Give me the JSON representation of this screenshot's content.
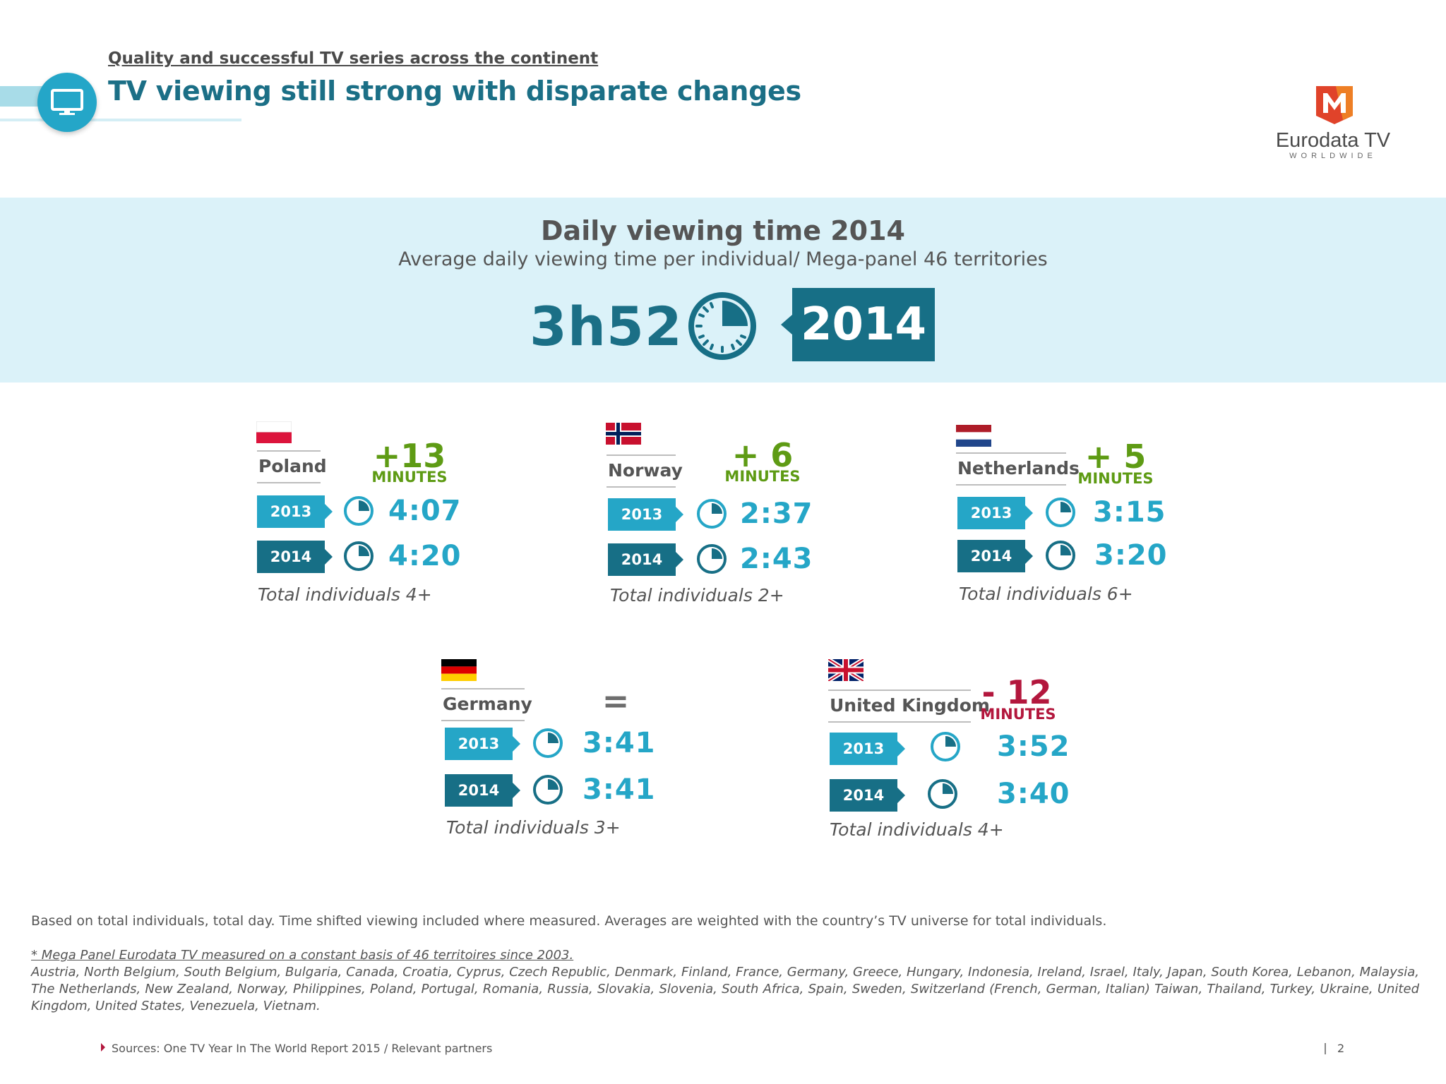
{
  "header": {
    "kicker": "Quality and successful TV series across the continent",
    "title": "TV viewing still strong with disparate changes",
    "icon": "tv-monitor-icon"
  },
  "logo": {
    "name": "Eurodata TV",
    "tagline": "WORLDWIDE",
    "mark_letter": "M",
    "colors": {
      "red": "#e0432a",
      "orange": "#f08a24"
    }
  },
  "banner": {
    "title": "Daily viewing time 2014",
    "subtitle": "Average daily viewing time per individual/ Mega-panel 46 territories",
    "time": "3h52",
    "year": "2014"
  },
  "countries": [
    {
      "name": "Poland",
      "flag": "poland",
      "change": "+13",
      "unit": "MINUTES",
      "trend": "up",
      "rows": [
        {
          "year": "2013",
          "time": "4:07"
        },
        {
          "year": "2014",
          "time": "4:20"
        }
      ],
      "base": "Total individuals 4+"
    },
    {
      "name": "Norway",
      "flag": "norway",
      "change": "+ 6",
      "unit": "MINUTES",
      "trend": "up",
      "rows": [
        {
          "year": "2013",
          "time": "2:37"
        },
        {
          "year": "2014",
          "time": "2:43"
        }
      ],
      "base": "Total individuals 2+"
    },
    {
      "name": "Netherlands",
      "flag": "netherlands",
      "change": "+ 5",
      "unit": "MINUTES",
      "trend": "up",
      "rows": [
        {
          "year": "2013",
          "time": "3:15"
        },
        {
          "year": "2014",
          "time": "3:20"
        }
      ],
      "base": "Total individuals 6+"
    },
    {
      "name": "Germany",
      "flag": "germany",
      "change": "=",
      "unit": "",
      "trend": "flat",
      "rows": [
        {
          "year": "2013",
          "time": "3:41"
        },
        {
          "year": "2014",
          "time": "3:41"
        }
      ],
      "base": "Total individuals 3+"
    },
    {
      "name": "United Kingdom",
      "flag": "united-kingdom",
      "change": "- 12",
      "unit": "MINUTES",
      "trend": "down",
      "rows": [
        {
          "year": "2013",
          "time": "3:52"
        },
        {
          "year": "2014",
          "time": "3:40"
        }
      ],
      "base": "Total individuals 4+"
    }
  ],
  "footer": {
    "note": "Based on total individuals, total day. Time shifted viewing included where measured. Averages are weighted with the country’s TV universe for total individuals.",
    "star": "* Mega Panel Eurodata TV measured on a constant basis of 46 territoires since 2003.",
    "territories": "Austria, North Belgium, South Belgium, Bulgaria, Canada, Croatia, Cyprus, Czech Republic, Denmark, Finland, France, Germany, Greece, Hungary, Indonesia, Ireland, Israel, Italy, Japan, South Korea, Lebanon, Malaysia, The Netherlands, New Zealand, Norway, Philippines, Poland, Portugal, Romania, Russia, Slovakia, Slovenia, South Africa, Spain, Sweden, Switzerland (French, German, Italian) Taiwan, Thailand, Turkey, Ukraine, United Kingdom, United States, Venezuela, Vietnam.",
    "sources": "Sources: One TV Year In The World Report 2015 / Relevant partners",
    "page": "2"
  },
  "colors": {
    "teal_dark": "#176f86",
    "teal_light": "#25a6c7",
    "banner_bg": "#dbf2f9",
    "increase": "#5e9b14",
    "decrease": "#b3173d"
  }
}
